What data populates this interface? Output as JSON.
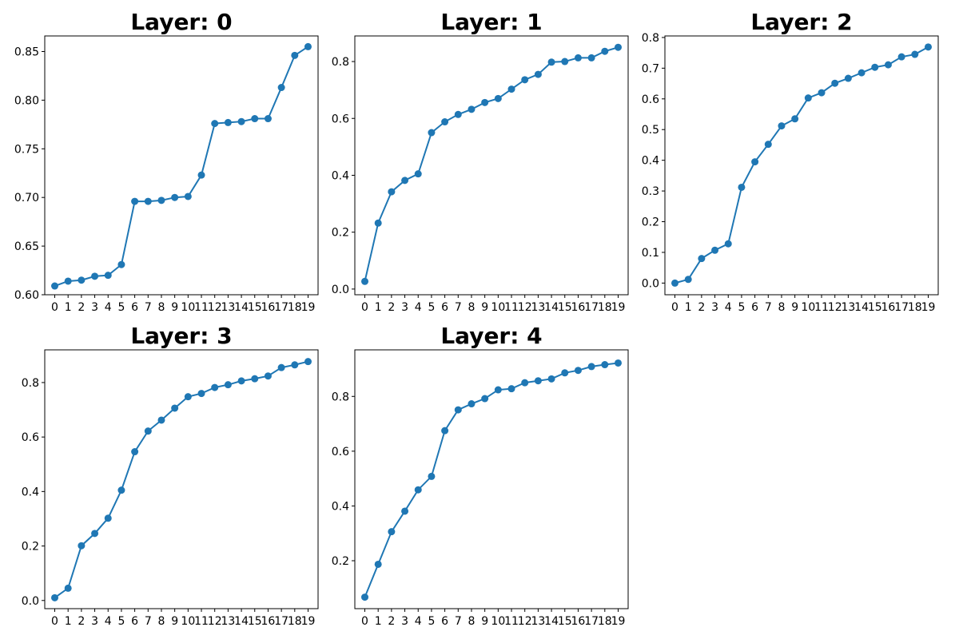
{
  "chart_data": [
    {
      "type": "line",
      "title": "Layer: 0",
      "xlabel": "",
      "ylabel": "",
      "x": [
        0,
        1,
        2,
        3,
        4,
        5,
        6,
        7,
        8,
        9,
        10,
        11,
        12,
        13,
        14,
        15,
        16,
        17,
        18,
        19
      ],
      "xticks": [
        "0",
        "1",
        "2",
        "3",
        "4",
        "5",
        "6",
        "7",
        "8",
        "9",
        "10",
        "11",
        "12",
        "13",
        "14",
        "15",
        "16",
        "17",
        "18",
        "19"
      ],
      "ylim": [
        0.6,
        0.866
      ],
      "yticks": [
        0.6,
        0.65,
        0.7,
        0.75,
        0.8,
        0.85
      ],
      "ytick_labels": [
        "0.60",
        "0.65",
        "0.70",
        "0.75",
        "0.80",
        "0.85"
      ],
      "grid": false,
      "series": [
        {
          "values": [
            0.609,
            0.614,
            0.615,
            0.619,
            0.62,
            0.631,
            0.696,
            0.696,
            0.697,
            0.7,
            0.701,
            0.723,
            0.776,
            0.777,
            0.778,
            0.781,
            0.781,
            0.813,
            0.846,
            0.855
          ],
          "color": "#1f77b4"
        }
      ]
    },
    {
      "type": "line",
      "title": "Layer: 1",
      "xlabel": "",
      "ylabel": "",
      "x": [
        0,
        1,
        2,
        3,
        4,
        5,
        6,
        7,
        8,
        9,
        10,
        11,
        12,
        13,
        14,
        15,
        16,
        17,
        18,
        19
      ],
      "xticks": [
        "0",
        "1",
        "2",
        "3",
        "4",
        "5",
        "6",
        "7",
        "8",
        "9",
        "10",
        "11",
        "12",
        "13",
        "14",
        "15",
        "16",
        "17",
        "18",
        "19"
      ],
      "ylim": [
        -0.02,
        0.89
      ],
      "yticks": [
        0.0,
        0.2,
        0.4,
        0.6,
        0.8
      ],
      "ytick_labels": [
        "0.0",
        "0.2",
        "0.4",
        "0.6",
        "0.8"
      ],
      "grid": false,
      "series": [
        {
          "values": [
            0.027,
            0.232,
            0.342,
            0.382,
            0.405,
            0.55,
            0.588,
            0.614,
            0.632,
            0.656,
            0.67,
            0.703,
            0.736,
            0.755,
            0.798,
            0.8,
            0.813,
            0.813,
            0.836,
            0.85
          ],
          "color": "#1f77b4"
        }
      ]
    },
    {
      "type": "line",
      "title": "Layer: 2",
      "xlabel": "",
      "ylabel": "",
      "x": [
        0,
        1,
        2,
        3,
        4,
        5,
        6,
        7,
        8,
        9,
        10,
        11,
        12,
        13,
        14,
        15,
        16,
        17,
        18,
        19
      ],
      "xticks": [
        "0",
        "1",
        "2",
        "3",
        "4",
        "5",
        "6",
        "7",
        "8",
        "9",
        "10",
        "11",
        "12",
        "13",
        "14",
        "15",
        "16",
        "17",
        "18",
        "19"
      ],
      "ylim": [
        -0.038,
        0.805
      ],
      "yticks": [
        0.0,
        0.1,
        0.2,
        0.3,
        0.4,
        0.5,
        0.6,
        0.7,
        0.8
      ],
      "ytick_labels": [
        "0.0",
        "0.1",
        "0.2",
        "0.3",
        "0.4",
        "0.5",
        "0.6",
        "0.7",
        "0.8"
      ],
      "grid": false,
      "series": [
        {
          "values": [
            0.0,
            0.012,
            0.08,
            0.107,
            0.128,
            0.312,
            0.395,
            0.452,
            0.512,
            0.535,
            0.603,
            0.62,
            0.651,
            0.667,
            0.685,
            0.703,
            0.711,
            0.737,
            0.745,
            0.769
          ],
          "color": "#1f77b4"
        }
      ]
    },
    {
      "type": "line",
      "title": "Layer: 3",
      "xlabel": "",
      "ylabel": "",
      "x": [
        0,
        1,
        2,
        3,
        4,
        5,
        6,
        7,
        8,
        9,
        10,
        11,
        12,
        13,
        14,
        15,
        16,
        17,
        18,
        19
      ],
      "xticks": [
        "0",
        "1",
        "2",
        "3",
        "4",
        "5",
        "6",
        "7",
        "8",
        "9",
        "10",
        "11",
        "12",
        "13",
        "14",
        "15",
        "16",
        "17",
        "18",
        "19"
      ],
      "ylim": [
        -0.03,
        0.92
      ],
      "yticks": [
        0.0,
        0.2,
        0.4,
        0.6,
        0.8
      ],
      "ytick_labels": [
        "0.0",
        "0.2",
        "0.4",
        "0.6",
        "0.8"
      ],
      "grid": false,
      "series": [
        {
          "values": [
            0.01,
            0.045,
            0.201,
            0.246,
            0.302,
            0.405,
            0.546,
            0.622,
            0.662,
            0.706,
            0.748,
            0.76,
            0.782,
            0.792,
            0.806,
            0.814,
            0.824,
            0.855,
            0.865,
            0.877
          ],
          "color": "#1f77b4"
        }
      ]
    },
    {
      "type": "line",
      "title": "Layer: 4",
      "xlabel": "",
      "ylabel": "",
      "x": [
        0,
        1,
        2,
        3,
        4,
        5,
        6,
        7,
        8,
        9,
        10,
        11,
        12,
        13,
        14,
        15,
        16,
        17,
        18,
        19
      ],
      "xticks": [
        "0",
        "1",
        "2",
        "3",
        "4",
        "5",
        "6",
        "7",
        "8",
        "9",
        "10",
        "11",
        "12",
        "13",
        "14",
        "15",
        "16",
        "17",
        "18",
        "19"
      ],
      "ylim": [
        0.025,
        0.97
      ],
      "yticks": [
        0.2,
        0.4,
        0.6,
        0.8
      ],
      "ytick_labels": [
        "0.2",
        "0.4",
        "0.6",
        "0.8"
      ],
      "grid": false,
      "series": [
        {
          "values": [
            0.067,
            0.187,
            0.306,
            0.381,
            0.459,
            0.508,
            0.675,
            0.751,
            0.773,
            0.792,
            0.824,
            0.828,
            0.85,
            0.857,
            0.864,
            0.886,
            0.895,
            0.909,
            0.916,
            0.922
          ],
          "color": "#1f77b4"
        }
      ]
    }
  ]
}
